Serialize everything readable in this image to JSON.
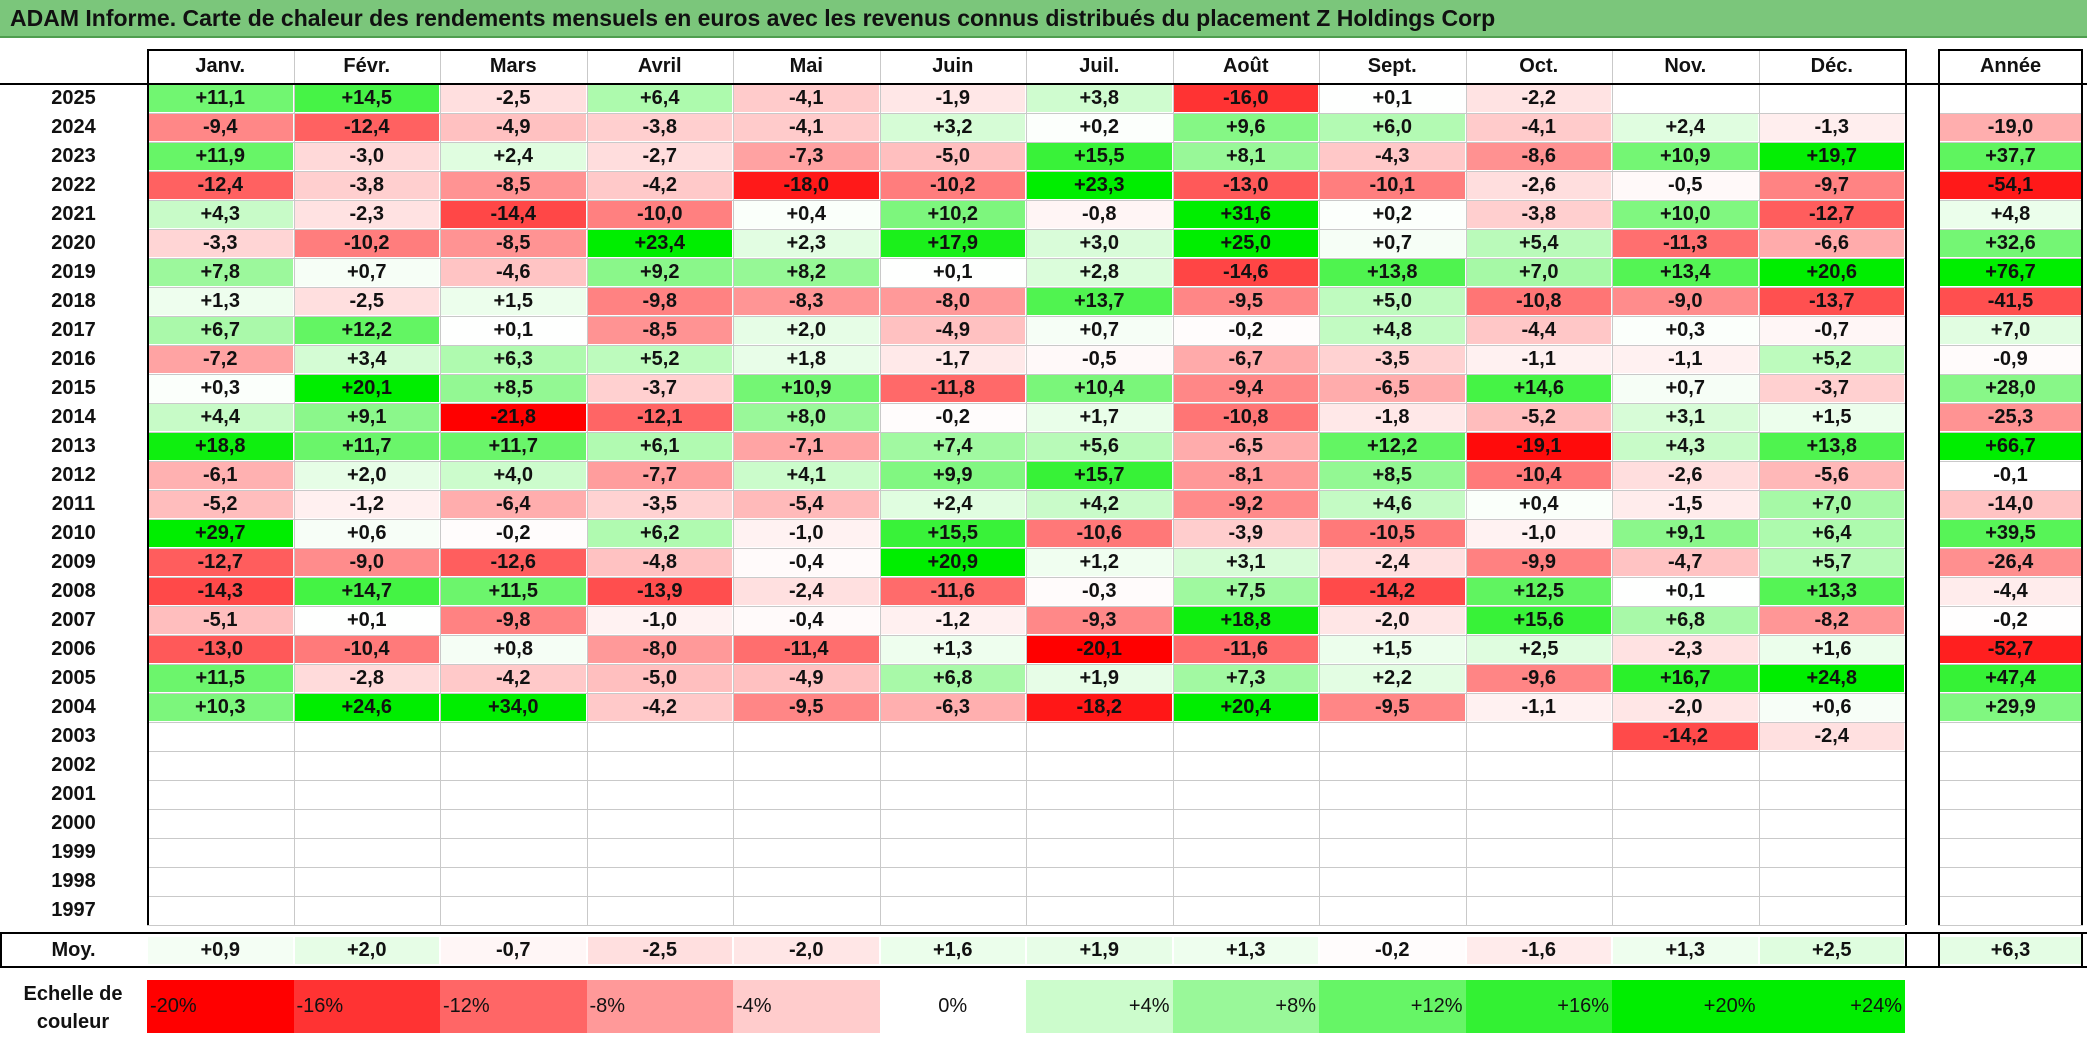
{
  "title": "ADAM Informe. Carte de chaleur des rendements mensuels en euros avec les revenus connus distribués du placement Z Holdings Corp",
  "colors": {
    "title_bg": "#7bc67b",
    "positive": "#00ee00",
    "negative": "#ff0000",
    "neutral": "#ffffff"
  },
  "chart_data": {
    "type": "heatmap",
    "months": [
      "Janv.",
      "Févr.",
      "Mars",
      "Avril",
      "Mai",
      "Juin",
      "Juil.",
      "Août",
      "Sept.",
      "Oct.",
      "Nov.",
      "Déc."
    ],
    "year_column_label": "Année",
    "rows": [
      {
        "year": "2025",
        "values": [
          "+11,1",
          "+14,5",
          "-2,5",
          "+6,4",
          "-4,1",
          "-1,9",
          "+3,8",
          "-16,0",
          "+0,1",
          "-2,2",
          "",
          ""
        ],
        "annual": ""
      },
      {
        "year": "2024",
        "values": [
          "-9,4",
          "-12,4",
          "-4,9",
          "-3,8",
          "-4,1",
          "+3,2",
          "+0,2",
          "+9,6",
          "+6,0",
          "-4,1",
          "+2,4",
          "-1,3"
        ],
        "annual": "-19,0"
      },
      {
        "year": "2023",
        "values": [
          "+11,9",
          "-3,0",
          "+2,4",
          "-2,7",
          "-7,3",
          "-5,0",
          "+15,5",
          "+8,1",
          "-4,3",
          "-8,6",
          "+10,9",
          "+19,7"
        ],
        "annual": "+37,7"
      },
      {
        "year": "2022",
        "values": [
          "-12,4",
          "-3,8",
          "-8,5",
          "-4,2",
          "-18,0",
          "-10,2",
          "+23,3",
          "-13,0",
          "-10,1",
          "-2,6",
          "-0,5",
          "-9,7"
        ],
        "annual": "-54,1"
      },
      {
        "year": "2021",
        "values": [
          "+4,3",
          "-2,3",
          "-14,4",
          "-10,0",
          "+0,4",
          "+10,2",
          "-0,8",
          "+31,6",
          "+0,2",
          "-3,8",
          "+10,0",
          "-12,7"
        ],
        "annual": "+4,8"
      },
      {
        "year": "2020",
        "values": [
          "-3,3",
          "-10,2",
          "-8,5",
          "+23,4",
          "+2,3",
          "+17,9",
          "+3,0",
          "+25,0",
          "+0,7",
          "+5,4",
          "-11,3",
          "-6,6"
        ],
        "annual": "+32,6"
      },
      {
        "year": "2019",
        "values": [
          "+7,8",
          "+0,7",
          "-4,6",
          "+9,2",
          "+8,2",
          "+0,1",
          "+2,8",
          "-14,6",
          "+13,8",
          "+7,0",
          "+13,4",
          "+20,6"
        ],
        "annual": "+76,7"
      },
      {
        "year": "2018",
        "values": [
          "+1,3",
          "-2,5",
          "+1,5",
          "-9,8",
          "-8,3",
          "-8,0",
          "+13,7",
          "-9,5",
          "+5,0",
          "-10,8",
          "-9,0",
          "-13,7"
        ],
        "annual": "-41,5"
      },
      {
        "year": "2017",
        "values": [
          "+6,7",
          "+12,2",
          "+0,1",
          "-8,5",
          "+2,0",
          "-4,9",
          "+0,7",
          "-0,2",
          "+4,8",
          "-4,4",
          "+0,3",
          "-0,7"
        ],
        "annual": "+7,0"
      },
      {
        "year": "2016",
        "values": [
          "-7,2",
          "+3,4",
          "+6,3",
          "+5,2",
          "+1,8",
          "-1,7",
          "-0,5",
          "-6,7",
          "-3,5",
          "-1,1",
          "-1,1",
          "+5,2"
        ],
        "annual": "-0,9"
      },
      {
        "year": "2015",
        "values": [
          "+0,3",
          "+20,1",
          "+8,5",
          "-3,7",
          "+10,9",
          "-11,8",
          "+10,4",
          "-9,4",
          "-6,5",
          "+14,6",
          "+0,7",
          "-3,7"
        ],
        "annual": "+28,0"
      },
      {
        "year": "2014",
        "values": [
          "+4,4",
          "+9,1",
          "-21,8",
          "-12,1",
          "+8,0",
          "-0,2",
          "+1,7",
          "-10,8",
          "-1,8",
          "-5,2",
          "+3,1",
          "+1,5"
        ],
        "annual": "-25,3"
      },
      {
        "year": "2013",
        "values": [
          "+18,8",
          "+11,7",
          "+11,7",
          "+6,1",
          "-7,1",
          "+7,4",
          "+5,6",
          "-6,5",
          "+12,2",
          "-19,1",
          "+4,3",
          "+13,8"
        ],
        "annual": "+66,7"
      },
      {
        "year": "2012",
        "values": [
          "-6,1",
          "+2,0",
          "+4,0",
          "-7,7",
          "+4,1",
          "+9,9",
          "+15,7",
          "-8,1",
          "+8,5",
          "-10,4",
          "-2,6",
          "-5,6"
        ],
        "annual": "-0,1"
      },
      {
        "year": "2011",
        "values": [
          "-5,2",
          "-1,2",
          "-6,4",
          "-3,5",
          "-5,4",
          "+2,4",
          "+4,2",
          "-9,2",
          "+4,6",
          "+0,4",
          "-1,5",
          "+7,0"
        ],
        "annual": "-14,0"
      },
      {
        "year": "2010",
        "values": [
          "+29,7",
          "+0,6",
          "-0,2",
          "+6,2",
          "-1,0",
          "+15,5",
          "-10,6",
          "-3,9",
          "-10,5",
          "-1,0",
          "+9,1",
          "+6,4"
        ],
        "annual": "+39,5"
      },
      {
        "year": "2009",
        "values": [
          "-12,7",
          "-9,0",
          "-12,6",
          "-4,8",
          "-0,4",
          "+20,9",
          "+1,2",
          "+3,1",
          "-2,4",
          "-9,9",
          "-4,7",
          "+5,7"
        ],
        "annual": "-26,4"
      },
      {
        "year": "2008",
        "values": [
          "-14,3",
          "+14,7",
          "+11,5",
          "-13,9",
          "-2,4",
          "-11,6",
          "-0,3",
          "+7,5",
          "-14,2",
          "+12,5",
          "+0,1",
          "+13,3"
        ],
        "annual": "-4,4"
      },
      {
        "year": "2007",
        "values": [
          "-5,1",
          "+0,1",
          "-9,8",
          "-1,0",
          "-0,4",
          "-1,2",
          "-9,3",
          "+18,8",
          "-2,0",
          "+15,6",
          "+6,8",
          "-8,2"
        ],
        "annual": "-0,2"
      },
      {
        "year": "2006",
        "values": [
          "-13,0",
          "-10,4",
          "+0,8",
          "-8,0",
          "-11,4",
          "+1,3",
          "-20,1",
          "-11,6",
          "+1,5",
          "+2,5",
          "-2,3",
          "+1,6"
        ],
        "annual": "-52,7"
      },
      {
        "year": "2005",
        "values": [
          "+11,5",
          "-2,8",
          "-4,2",
          "-5,0",
          "-4,9",
          "+6,8",
          "+1,9",
          "+7,3",
          "+2,2",
          "-9,6",
          "+16,7",
          "+24,8"
        ],
        "annual": "+47,4"
      },
      {
        "year": "2004",
        "values": [
          "+10,3",
          "+24,6",
          "+34,0",
          "-4,2",
          "-9,5",
          "-6,3",
          "-18,2",
          "+20,4",
          "-9,5",
          "-1,1",
          "-2,0",
          "+0,6"
        ],
        "annual": "+29,9"
      },
      {
        "year": "2003",
        "values": [
          "",
          "",
          "",
          "",
          "",
          "",
          "",
          "",
          "",
          "",
          "-14,2",
          "-2,4"
        ],
        "annual": ""
      },
      {
        "year": "2002",
        "values": [
          "",
          "",
          "",
          "",
          "",
          "",
          "",
          "",
          "",
          "",
          "",
          ""
        ],
        "annual": ""
      },
      {
        "year": "2001",
        "values": [
          "",
          "",
          "",
          "",
          "",
          "",
          "",
          "",
          "",
          "",
          "",
          ""
        ],
        "annual": ""
      },
      {
        "year": "2000",
        "values": [
          "",
          "",
          "",
          "",
          "",
          "",
          "",
          "",
          "",
          "",
          "",
          ""
        ],
        "annual": ""
      },
      {
        "year": "1999",
        "values": [
          "",
          "",
          "",
          "",
          "",
          "",
          "",
          "",
          "",
          "",
          "",
          ""
        ],
        "annual": ""
      },
      {
        "year": "1998",
        "values": [
          "",
          "",
          "",
          "",
          "",
          "",
          "",
          "",
          "",
          "",
          "",
          ""
        ],
        "annual": ""
      },
      {
        "year": "1997",
        "values": [
          "",
          "",
          "",
          "",
          "",
          "",
          "",
          "",
          "",
          "",
          "",
          ""
        ],
        "annual": ""
      }
    ],
    "average": {
      "label": "Moy.",
      "values": [
        "+0,9",
        "+2,0",
        "-0,7",
        "-2,5",
        "-2,0",
        "+1,6",
        "+1,9",
        "+1,3",
        "-0,2",
        "-1,6",
        "+1,3",
        "+2,5"
      ],
      "annual": "+6,3"
    },
    "color_scale": {
      "label": "Echelle de couleur",
      "stops": [
        "-20%",
        "-16%",
        "-12%",
        "-8%",
        "-4%",
        "0%",
        "+4%",
        "+8%",
        "+12%",
        "+16%",
        "+20%",
        "+24%"
      ]
    }
  }
}
